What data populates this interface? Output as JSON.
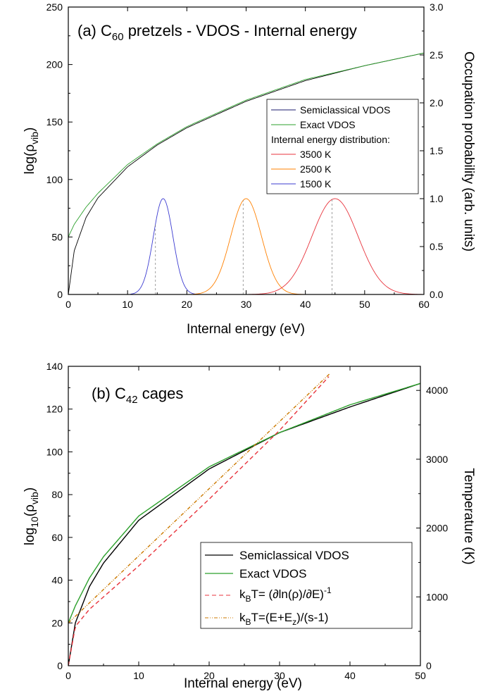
{
  "chart_data": [
    {
      "type": "line",
      "title": "(a) C60 pretzels - VDOS - Internal energy",
      "title_parts": {
        "prefix": "(a) C",
        "sub": "60",
        "suffix": " pretzels - VDOS - Internal energy"
      },
      "xlabel": "Internal energy (eV)",
      "ylabel": {
        "main": "log(ρ",
        "sub": "vib",
        "end": ")"
      },
      "ylabel_right": "Occupation probability (arb. units)",
      "xlim": [
        0,
        60
      ],
      "ylim": [
        0,
        250
      ],
      "ylim_right": [
        0,
        3.0
      ],
      "x_ticks": [
        "0",
        "10",
        "20",
        "30",
        "40",
        "50",
        "60"
      ],
      "y_ticks": [
        "0",
        "50",
        "100",
        "150",
        "200",
        "250"
      ],
      "y_right_ticks": [
        "0.0",
        "0.5",
        "1.0",
        "1.5",
        "2.0",
        "2.5",
        "3.0"
      ],
      "legend": {
        "placement": "center-right",
        "entries": [
          {
            "label": "Semiclassical VDOS",
            "color": "#1a1a6e"
          },
          {
            "label": "Exact VDOS",
            "color": "#2ca02c"
          }
        ],
        "heading": "Internal energy distribution:",
        "entries2": [
          {
            "label": "3500 K",
            "color": "#e8333c"
          },
          {
            "label": "2500 K",
            "color": "#ff8000"
          },
          {
            "label": "1500 K",
            "color": "#3b3bd1"
          }
        ]
      },
      "series": [
        {
          "name": "Semiclassical VDOS",
          "color": "#000000",
          "model": "semi",
          "x": [
            0,
            1,
            3,
            5,
            10,
            15,
            20,
            30,
            40,
            50,
            60
          ],
          "values": [
            0,
            38,
            67,
            84,
            111,
            130,
            145,
            168,
            186,
            199,
            210
          ]
        },
        {
          "name": "Exact VDOS",
          "color": "#2ca02c",
          "model": "exact",
          "x": [
            0,
            1,
            3,
            5,
            10,
            15,
            20,
            30,
            40,
            50,
            60
          ],
          "values": [
            50,
            61,
            76,
            88,
            113,
            131,
            146,
            169,
            187,
            199,
            210
          ]
        },
        {
          "name": "1500 K",
          "color": "#3b3bd1",
          "peak_x": 16,
          "sigma": 1.65,
          "peak_y": 1.0,
          "range": [
            10.5,
            22.5
          ],
          "mode_line_x": 14.7
        },
        {
          "name": "2500 K",
          "color": "#ff8000",
          "peak_x": 30,
          "sigma": 2.6,
          "peak_y": 1.0,
          "range": [
            21,
            42
          ],
          "mode_line_x": 29.5
        },
        {
          "name": "3500 K",
          "color": "#e8333c",
          "peak_x": 45,
          "sigma": 3.9,
          "peak_y": 1.0,
          "range": [
            30.5,
            60
          ],
          "mode_line_x": 44.5
        }
      ]
    },
    {
      "type": "line",
      "title": "(b) C42 cages",
      "title_parts": {
        "prefix": "(b) C",
        "sub": "42",
        "suffix": " cages"
      },
      "xlabel": "Internal energy (eV)",
      "ylabel": {
        "main": "log",
        "sub1": "10",
        "mid": "(ρ",
        "sub": "vib",
        "end": ")"
      },
      "ylabel_right": "Temperature (K)",
      "xlim": [
        0,
        50
      ],
      "ylim": [
        0,
        140
      ],
      "ylim_right": [
        0,
        4350
      ],
      "x_ticks": [
        "0",
        "10",
        "20",
        "30",
        "40",
        "50"
      ],
      "y_ticks": [
        "0",
        "20",
        "40",
        "60",
        "80",
        "100",
        "120",
        "140"
      ],
      "y_right_ticks": [
        "0",
        "1000",
        "2000",
        "3000",
        "4000"
      ],
      "legend": {
        "placement": "bottom-right",
        "entries": [
          {
            "label": "Semiclassical VDOS",
            "color": "#000000"
          },
          {
            "label": "Exact VDOS",
            "color": "#2ca02c"
          },
          {
            "label": "kBT= (∂ln(ρ)/∂E)-1",
            "color": "#e8333c"
          },
          {
            "label": "kBT=(E+Ez)/(s-1)",
            "color": "#cc7a00"
          }
        ]
      },
      "series": [
        {
          "name": "Semiclassical VDOS",
          "color": "#000000",
          "model": "semi",
          "x": [
            0,
            1,
            3,
            5,
            10,
            20,
            30,
            40,
            50
          ],
          "values": [
            0,
            20,
            37,
            48,
            68,
            92,
            109,
            121,
            132
          ]
        },
        {
          "name": "Exact VDOS",
          "color": "#2ca02c",
          "model": "exact",
          "x": [
            0,
            1,
            3,
            5,
            10,
            20,
            30,
            40,
            50
          ],
          "values": [
            20,
            28,
            41,
            51,
            70,
            93,
            109,
            122,
            132
          ]
        },
        {
          "name": "kBT= (∂ln(ρ)/∂E)-1",
          "color": "#e8333c",
          "dash": "6,4",
          "x": [
            0,
            1,
            3,
            5,
            10,
            20,
            30,
            37
          ],
          "values": [
            0,
            570,
            820,
            1000,
            1450,
            2420,
            3420,
            4200
          ]
        },
        {
          "name": "kBT=(E+Ez)/(s-1)",
          "color": "#cc7a00",
          "dash": "5,2,1,2,1,2",
          "x": [
            0,
            37.2
          ],
          "values": [
            620,
            4250
          ]
        }
      ]
    }
  ]
}
